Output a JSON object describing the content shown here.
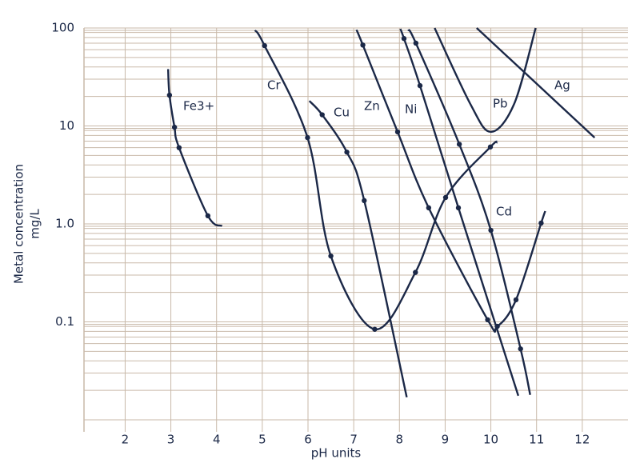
{
  "chart_data": {
    "type": "line",
    "log_y": true,
    "grid": true,
    "color": "#1b2847",
    "ylabel": [
      "Metal concentration",
      "mg/L"
    ],
    "xlabel": "pH units",
    "xlim": [
      1.1,
      13
    ],
    "xticks": [
      2,
      3,
      4,
      5,
      6,
      7,
      8,
      9,
      10,
      11,
      12
    ],
    "ylim": [
      0.01,
      100
    ],
    "yticks": [
      0.1,
      {
        "value": 1,
        "label": "1.0"
      },
      10,
      100
    ],
    "series": [
      {
        "name": "Fe3+",
        "markers": true,
        "x": [
          2.94,
          2.97,
          3.08,
          3.18,
          3.81,
          4.12
        ],
        "values": [
          38,
          20.6,
          9.7,
          6,
          1.21,
          0.95
        ]
      },
      {
        "name": "Cr",
        "markers": true,
        "x": [
          4.84,
          5.05,
          5.99,
          6.5,
          7.46,
          8.35,
          9.01,
          9.99,
          10.14
        ],
        "values": [
          95,
          66,
          7.6,
          0.47,
          0.084,
          0.32,
          1.86,
          6.1,
          6.8
        ]
      },
      {
        "name": "Cu",
        "markers": true,
        "x": [
          6.03,
          6.31,
          6.85,
          7.23,
          8.16
        ],
        "values": [
          18,
          13,
          5.4,
          1.73,
          0.017
        ]
      },
      {
        "name": "Zn",
        "markers": true,
        "x": [
          7.06,
          7.2,
          7.96,
          8.64,
          9.93,
          10.14,
          10.55,
          11.1,
          11.19
        ],
        "values": [
          96,
          67,
          8.7,
          1.46,
          0.105,
          0.09,
          0.168,
          1.02,
          1.35
        ]
      },
      {
        "name": "Ni",
        "markers": true,
        "x": [
          8.02,
          8.1,
          8.45,
          9.29,
          10.6
        ],
        "values": [
          98,
          78,
          25.8,
          1.46,
          0.0176
        ]
      },
      {
        "name": "Pb",
        "markers": false,
        "x": [
          8.77,
          9.55,
          10.0,
          10.51,
          10.98
        ],
        "values": [
          100,
          16.8,
          8.7,
          16.8,
          100
        ]
      },
      {
        "name": "Ag",
        "markers": false,
        "x": [
          9.69,
          12.27
        ],
        "values": [
          100,
          7.6
        ]
      },
      {
        "name": "Cd",
        "markers": true,
        "x": [
          8.19,
          8.36,
          9.31,
          10.0,
          10.65,
          10.86
        ],
        "values": [
          96,
          70,
          6.5,
          0.86,
          0.053,
          0.018
        ]
      }
    ]
  }
}
